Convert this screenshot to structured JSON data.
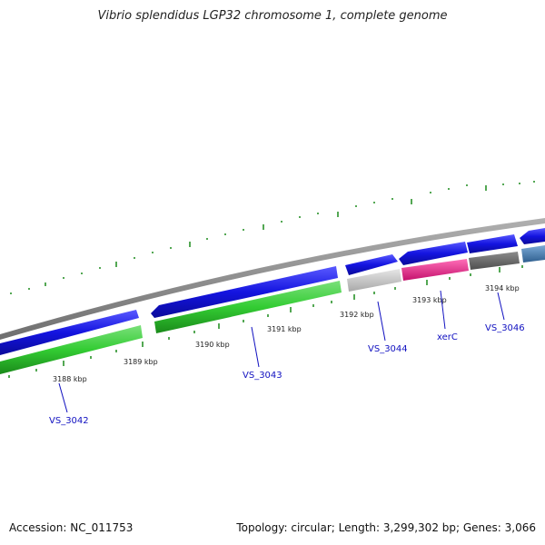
{
  "title": "Vibrio splendidus LGP32 chromosome 1, complete genome",
  "accession_text": "Accession: NC_011753",
  "topology_text": "Topology: circular; Length: 3,299,302 bp; Genes: 3,066",
  "colors": {
    "backbone": "#8a8a8a",
    "cds_strand": "#1414e0",
    "rna_green": "#33cc33",
    "gene_grey": "#c0c0c0",
    "gene_pink": "#ee1f8c",
    "gene_dark": "#6b6b6b",
    "gene_steel": "#4a7fb0",
    "tick_green": "#1a8a1a",
    "label_blue": "#1010c0"
  },
  "kbp_ticks": [
    "3188 kbp",
    "3189 kbp",
    "3190 kbp",
    "3191 kbp",
    "3192 kbp",
    "3193 kbp",
    "3194 kbp"
  ],
  "gene_labels": [
    "VS_3042",
    "VS_3043",
    "VS_3044",
    "xerC",
    "VS_3046"
  ]
}
